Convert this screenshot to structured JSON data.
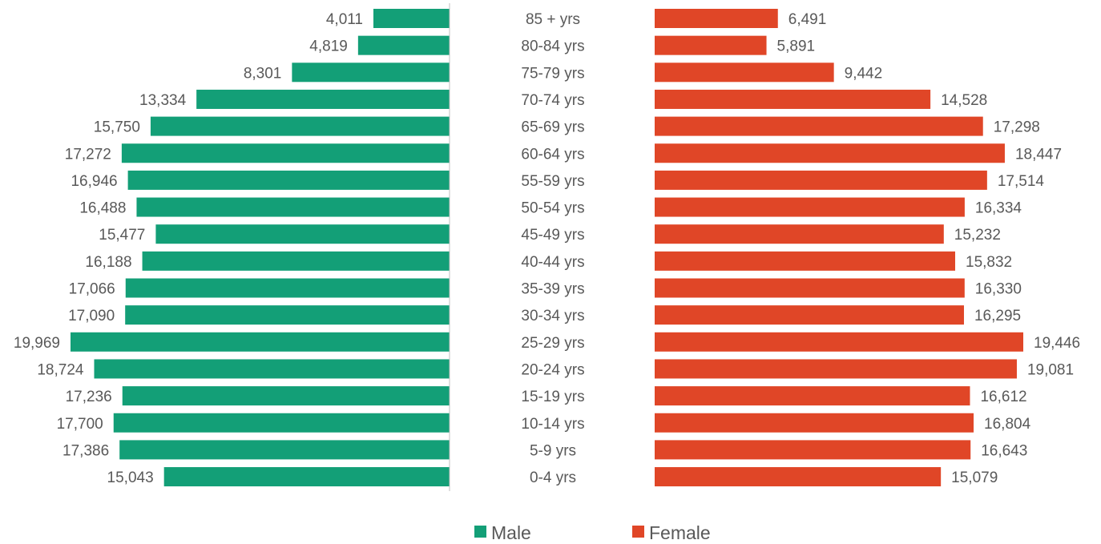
{
  "chart_data": {
    "type": "bar",
    "orientation": "horizontal",
    "layout": "population-pyramid",
    "categories": [
      "85 + yrs",
      "80-84 yrs",
      "75-79 yrs",
      "70-74 yrs",
      "65-69 yrs",
      "60-64 yrs",
      "55-59 yrs",
      "50-54 yrs",
      "45-49 yrs",
      "40-44 yrs",
      "35-39 yrs",
      "30-34 yrs",
      "25-29 yrs",
      "20-24 yrs",
      "15-19 yrs",
      "10-14 yrs",
      "5-9 yrs",
      "0-4 yrs"
    ],
    "series": [
      {
        "name": "Male",
        "color": "#139F77",
        "values": [
          4011,
          4819,
          8301,
          13334,
          15750,
          17272,
          16946,
          16488,
          15477,
          16188,
          17066,
          17090,
          19969,
          18724,
          17236,
          17700,
          17386,
          15043
        ],
        "labels": [
          "4,011",
          "4,819",
          "8,301",
          "13,334",
          "15,750",
          "17,272",
          "16,946",
          "16,488",
          "15,477",
          "16,188",
          "17,066",
          "17,090",
          "19,969",
          "18,724",
          "17,236",
          "17,700",
          "17,386",
          "15,043"
        ]
      },
      {
        "name": "Female",
        "color": "#E04627",
        "values": [
          6491,
          5891,
          9442,
          14528,
          17298,
          18447,
          17514,
          16334,
          15232,
          15832,
          16330,
          16295,
          19446,
          19081,
          16612,
          16804,
          16643,
          15079
        ],
        "labels": [
          "6,491",
          "5,891",
          "9,442",
          "14,528",
          "17,298",
          "18,447",
          "17,514",
          "16,334",
          "15,232",
          "15,832",
          "16,330",
          "16,295",
          "19,446",
          "19,081",
          "16,612",
          "16,804",
          "16,643",
          "15,079"
        ]
      }
    ],
    "title": "",
    "xlabel": "",
    "ylabel": "",
    "grid": false,
    "legend_position": "bottom-center"
  }
}
